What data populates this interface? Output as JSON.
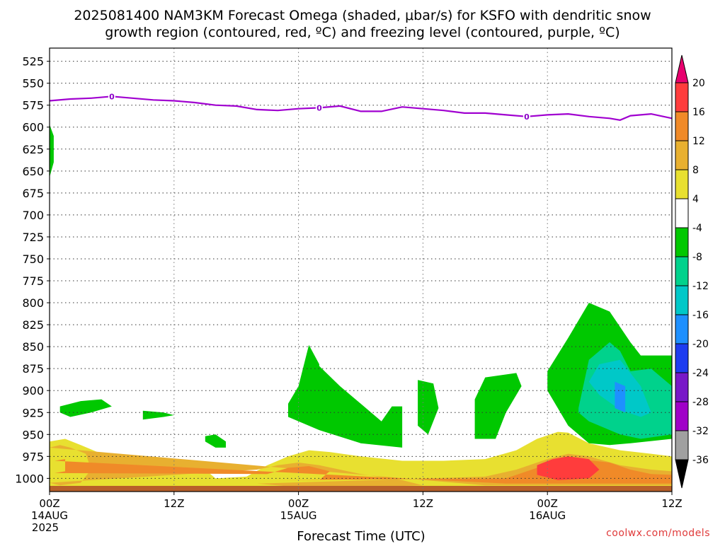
{
  "title": {
    "line1": "2025081400 NAM3KM Forecast Omega (shaded, μbar/s) for KSFO with dendritic snow",
    "line2": "growth region (contoured, red, ºC) and freezing level (contoured, purple, ºC)"
  },
  "credit": "coolwx.com/models",
  "chart_data": {
    "type": "heatmap",
    "subtype": "time-height cross section",
    "xlabel": "Forecast Time (UTC)",
    "ylabel": "",
    "x_range_hours": [
      0,
      60
    ],
    "y_range_hPa": [
      510,
      1015
    ],
    "y_scale": "linear pressure, inverted",
    "grid": "dotted",
    "y_ticks": [
      525,
      550,
      575,
      600,
      625,
      650,
      675,
      700,
      725,
      750,
      775,
      800,
      825,
      850,
      875,
      900,
      925,
      950,
      975,
      1000
    ],
    "x_ticks": [
      {
        "hour": 0,
        "line1": "00Z",
        "line2": "14AUG",
        "line3": "2025"
      },
      {
        "hour": 12,
        "line1": "12Z",
        "line2": "",
        "line3": ""
      },
      {
        "hour": 24,
        "line1": "00Z",
        "line2": "15AUG",
        "line3": ""
      },
      {
        "hour": 36,
        "line1": "12Z",
        "line2": "",
        "line3": ""
      },
      {
        "hour": 48,
        "line1": "00Z",
        "line2": "16AUG",
        "line3": ""
      },
      {
        "hour": 60,
        "line1": "12Z",
        "line2": "",
        "line3": ""
      }
    ],
    "colorbar": {
      "units": "μbar/s",
      "levels": [
        20,
        16,
        12,
        8,
        4,
        -4,
        -8,
        -12,
        -16,
        -20,
        -24,
        -28,
        -32,
        -36
      ],
      "colors": [
        "#e8006e",
        "#ff3c3c",
        "#f08a28",
        "#e8b030",
        "#e8e030",
        "#ffffff",
        "#00c800",
        "#00d28c",
        "#00c8c8",
        "#1e90ff",
        "#1e3cf0",
        "#7818c8",
        "#a000c8",
        "#a0a0a0",
        "#000000"
      ],
      "placement": "right"
    },
    "freezing_level": {
      "label": "0",
      "color": "#a000d0",
      "x_hours": [
        0,
        2,
        4,
        6,
        8,
        10,
        12,
        14,
        16,
        18,
        20,
        22,
        24,
        26,
        28,
        30,
        32,
        34,
        36,
        38,
        40,
        42,
        44,
        46,
        48,
        50,
        52,
        54,
        55,
        56,
        58,
        60
      ],
      "y_hPa": [
        570,
        568,
        567,
        565,
        567,
        569,
        570,
        572,
        575,
        576,
        580,
        581,
        579,
        578,
        576,
        582,
        582,
        577,
        579,
        581,
        584,
        584,
        586,
        588,
        586,
        585,
        588,
        590,
        592,
        587,
        585,
        590
      ],
      "label_hours": [
        6,
        26,
        46
      ]
    },
    "omega_regions": [
      {
        "class": "+4 to +8",
        "color": "#e8e030",
        "x_hours": [
          0,
          1.5,
          3,
          5,
          6,
          8,
          10,
          12,
          14,
          15,
          16,
          19,
          21,
          23,
          25,
          27,
          30,
          34,
          38,
          42,
          45,
          47,
          49,
          50,
          52,
          55,
          58,
          60,
          60,
          0
        ],
        "y_hPa": [
          958,
          955,
          962,
          972,
          978,
          985,
          980,
          978,
          982,
          990,
          1000,
          998,
          985,
          975,
          968,
          970,
          975,
          980,
          980,
          978,
          968,
          955,
          947,
          948,
          960,
          968,
          972,
          975,
          1015,
          1015
        ]
      },
      {
        "class": "+8 to +12",
        "color": "#e8b030",
        "x_hours": [
          0,
          1,
          2,
          3.5,
          4,
          3,
          1,
          0,
          20,
          22,
          24,
          26,
          30,
          34,
          36,
          30,
          24,
          20,
          42,
          45,
          48,
          50,
          52,
          55,
          58,
          60,
          60,
          42
        ],
        "y_hPa": [
          965,
          962,
          965,
          972,
          990,
          1005,
          1008,
          1005,
          990,
          985,
          982,
          985,
          995,
          1002,
          1008,
          1010,
          1010,
          1006,
          998,
          990,
          978,
          972,
          975,
          985,
          990,
          992,
          1008,
          1008
        ]
      },
      {
        "class": "+12 to +16",
        "color": "#f08a28",
        "x_hours": [
          0.5,
          1.5,
          1.5,
          0.5,
          21,
          23,
          25,
          27,
          26,
          22,
          44,
          47,
          49,
          51,
          54,
          56,
          58,
          60,
          60,
          44
        ],
        "y_hPa": [
          980,
          978,
          992,
          994,
          995,
          988,
          986,
          992,
          1002,
          1002,
          1000,
          988,
          980,
          978,
          982,
          990,
          995,
          996,
          1006,
          1006
        ]
      },
      {
        "class": "+16 to +20",
        "color": "#ff3c3c",
        "x_hours": [
          47,
          48.5,
          50,
          52,
          53,
          52,
          49,
          47
        ],
        "y_hPa": [
          985,
          978,
          975,
          978,
          990,
          1000,
          1002,
          996
        ]
      },
      {
        "class": "-4 to -8",
        "color": "#00c800",
        "x_hours": [
          0,
          0.4,
          0.4,
          0
        ],
        "y_hPa": [
          597,
          610,
          640,
          657
        ]
      },
      {
        "class": "-4 to -8",
        "color": "#00c800",
        "x_hours": [
          1,
          3,
          5,
          6,
          4,
          2,
          1
        ],
        "y_hPa": [
          918,
          912,
          910,
          918,
          925,
          930,
          925
        ]
      },
      {
        "class": "-4 to -8",
        "color": "#00c800",
        "x_hours": [
          9,
          11,
          12,
          11,
          9
        ],
        "y_hPa": [
          923,
          925,
          928,
          930,
          933
        ]
      },
      {
        "class": "-4 to -8",
        "color": "#00c800",
        "x_hours": [
          15,
          16,
          17,
          17,
          16,
          15
        ],
        "y_hPa": [
          952,
          950,
          958,
          965,
          965,
          958
        ]
      },
      {
        "class": "-4 to -8",
        "color": "#00c800",
        "x_hours": [
          23,
          24,
          25,
          26,
          26,
          28,
          30,
          32,
          33,
          34,
          34,
          30,
          26,
          23
        ],
        "y_hPa": [
          915,
          895,
          848,
          870,
          872,
          895,
          915,
          935,
          918,
          918,
          965,
          960,
          945,
          930
        ]
      },
      {
        "class": "-4 to -8",
        "color": "#00c800",
        "x_hours": [
          35.5,
          37,
          37.5,
          36.5,
          35.5
        ],
        "y_hPa": [
          888,
          892,
          920,
          950,
          940
        ]
      },
      {
        "class": "-4 to -8",
        "color": "#00c800",
        "x_hours": [
          41,
          42,
          45,
          45.5,
          44,
          43,
          41
        ],
        "y_hPa": [
          910,
          885,
          880,
          895,
          925,
          955,
          955
        ]
      },
      {
        "class": "-4 to -8",
        "color": "#00c800",
        "x_hours": [
          48,
          50,
          52,
          54,
          56,
          57,
          60,
          60,
          56,
          54,
          52,
          50,
          48
        ],
        "y_hPa": [
          878,
          840,
          800,
          810,
          845,
          860,
          860,
          955,
          960,
          962,
          960,
          940,
          900
        ]
      },
      {
        "class": "-8 to -12",
        "color": "#00d28c",
        "x_hours": [
          51,
          52,
          54,
          55,
          56,
          58,
          60,
          60,
          57,
          55,
          52,
          51
        ],
        "y_hPa": [
          920,
          865,
          845,
          855,
          878,
          875,
          895,
          950,
          955,
          950,
          935,
          925
        ]
      },
      {
        "class": "-12 to -16",
        "color": "#00c8c8",
        "x_hours": [
          52,
          53,
          55,
          57,
          58,
          57,
          55,
          53
        ],
        "y_hPa": [
          890,
          870,
          865,
          895,
          925,
          930,
          922,
          905
        ]
      },
      {
        "class": "-16 to -20",
        "color": "#1e90ff",
        "x_hours": [
          54.5,
          55.5,
          55.5,
          54.5
        ],
        "y_hPa": [
          890,
          895,
          925,
          920
        ]
      }
    ]
  }
}
